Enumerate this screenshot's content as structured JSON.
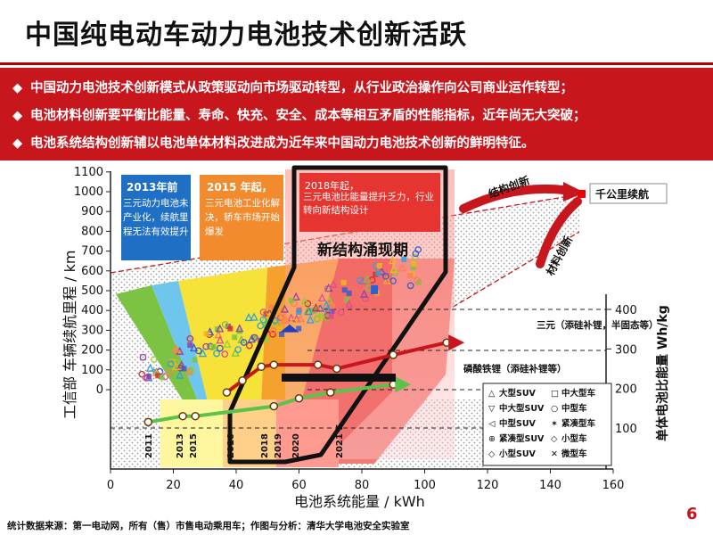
{
  "title": "中国纯电动车动力电池技术创新活跃",
  "bullets": [
    "中国动力电池技术创新模式从政策驱动向市场驱动转型，从行业政治操作向公司商业运作转型；",
    "电池材料创新要平衡比能量、寿命、快充、安全、成本等相互矛盾的性能指标，近年尚无大突破；",
    "电池系统结构创新辅以电池单体材料改进成为近年来中国动力电池技术创新的鲜明特征。"
  ],
  "bullet_marker": "◆",
  "chart_data": {
    "type": "scatter",
    "xlabel": "电池系统能量 / kWh",
    "ylabel_left": "工信部 车辆续航里程 / km",
    "ylabel_right": "单体电池比能量 Wh/kg",
    "xlim": [
      0,
      160
    ],
    "ylim_left": [
      0,
      1100
    ],
    "x_ticks": [
      "0",
      "20",
      "40",
      "60",
      "80",
      "100",
      "120",
      "140",
      "160"
    ],
    "y_ticks_left": [
      "0",
      "100",
      "200",
      "300",
      "400",
      "500",
      "600",
      "700",
      "800",
      "900",
      "1000",
      "1100"
    ],
    "y_ticks_right": [
      "100",
      "200",
      "300",
      "400"
    ],
    "years": [
      "2011",
      "2013",
      "2015",
      "2016",
      "2018",
      "2019",
      "2020",
      "2021 E"
    ],
    "boxes": [
      {
        "label": "2013年前",
        "text": "三元动力电池未产业化，续航里程无法有效提升",
        "color": "#1f6fc4"
      },
      {
        "label": "2015 年起，",
        "text": "三元电池工业化解决，轿车市场开始爆发",
        "color": "#f28a2e"
      },
      {
        "label": "2018年起，",
        "text": "三元电池比能量提升乏力，行业转向新结构设计",
        "color": "#e63530"
      }
    ],
    "annotations": {
      "new_structure": "新结构涌现期",
      "structure_innovation": "结构创新",
      "material_innovation": "材料创新",
      "thousand_km": "千公里续航",
      "ternary": "三元（添硅补锂，半固态等）",
      "lfp": "磷酸铁锂（添硅补锂等）"
    },
    "ternary_curve": {
      "x": [
        37,
        42,
        48,
        52,
        66,
        72,
        90,
        107
      ],
      "wh_kg": [
        190,
        220,
        255,
        260,
        260,
        250,
        285,
        316
      ]
    },
    "lfp_curve": {
      "x": [
        12,
        23,
        27,
        52,
        60,
        70,
        90
      ],
      "wh_kg": [
        115,
        130,
        130,
        155,
        175,
        190,
        210
      ]
    },
    "legend": [
      [
        "大型SUV",
        "中大型车"
      ],
      [
        "中大型SUV",
        "中型车"
      ],
      [
        "中型SUV",
        "紧凑型车"
      ],
      [
        "紧凑型SUV",
        "小型车"
      ],
      [
        "小型SUV",
        "微型车"
      ]
    ],
    "legend_symbols": [
      [
        "△",
        "□"
      ],
      [
        "▽",
        "○"
      ],
      [
        "◁",
        "✶"
      ],
      [
        "⊕",
        "◇"
      ],
      [
        "◇",
        "✕"
      ]
    ]
  },
  "footer": {
    "source": "统计数据来源：第一电动网，所有（售）市售电动乘用车；作图与分析：清华大学电池安全实验室",
    "page": "6"
  },
  "colors": {
    "brand_red": "#c8161d",
    "blue": "#1f6fc4",
    "orange": "#f28a2e",
    "yellow": "#f7e23a",
    "green": "#6cc04a"
  }
}
